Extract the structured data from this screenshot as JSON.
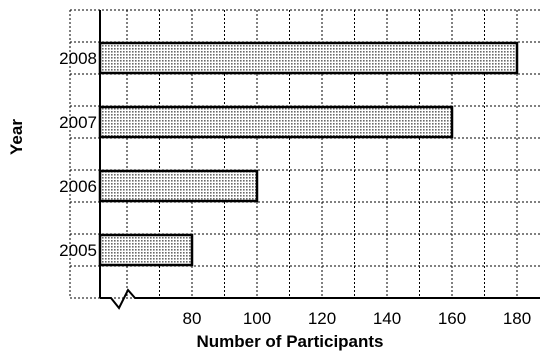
{
  "chart_data": {
    "type": "bar",
    "orientation": "horizontal",
    "categories": [
      "2008",
      "2007",
      "2006",
      "2005"
    ],
    "values": [
      180,
      160,
      100,
      80
    ],
    "xlabel": "Number of Participants",
    "ylabel": "Year",
    "x_ticks": [
      "80",
      "100",
      "120",
      "140",
      "160",
      "180"
    ],
    "xlim": [
      60,
      190
    ],
    "axis_break": true,
    "grid": true,
    "bar_fill": "#bdbdbd",
    "bar_edge": "#000000"
  }
}
